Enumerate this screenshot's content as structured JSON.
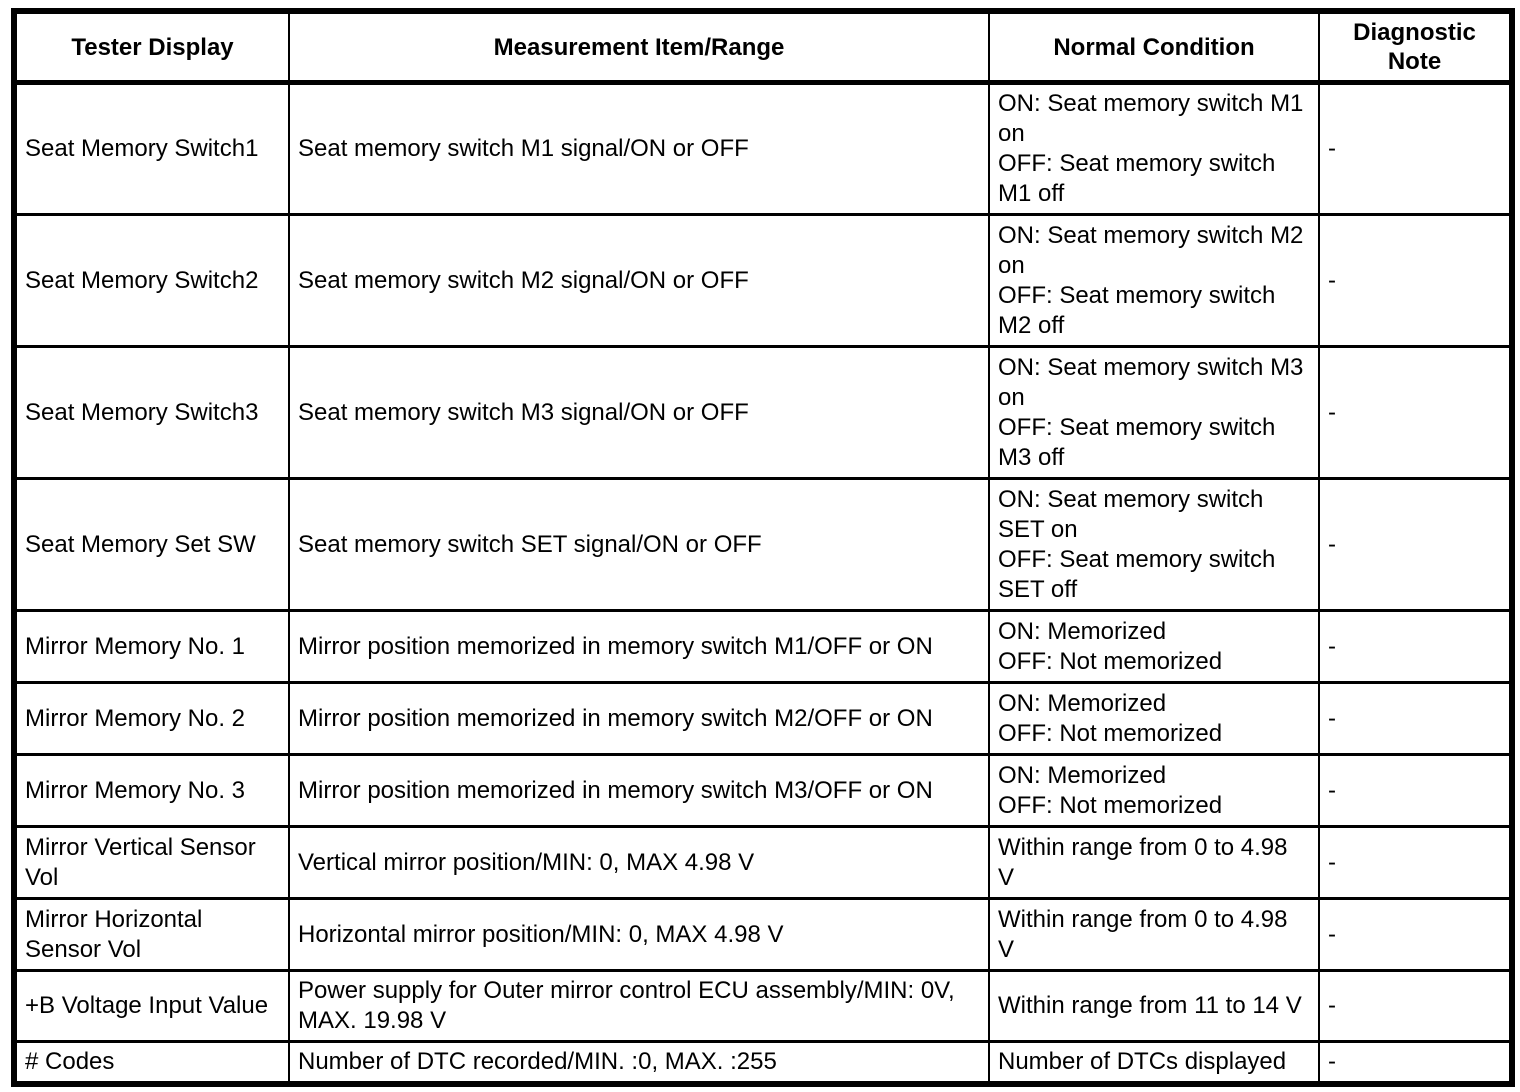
{
  "table": {
    "columns": [
      {
        "label": "Tester Display"
      },
      {
        "label": "Measurement Item/Range"
      },
      {
        "label": "Normal Condition"
      },
      {
        "label": "Diagnostic Note"
      }
    ],
    "rows": [
      {
        "tester_display": "Seat Memory Switch1",
        "measurement": "Seat memory switch M1 signal/ON or OFF",
        "normal_condition": "ON: Seat memory switch M1 on\nOFF: Seat memory switch M1 off",
        "diagnostic_note": "-"
      },
      {
        "tester_display": "Seat Memory Switch2",
        "measurement": "Seat memory switch M2 signal/ON or OFF",
        "normal_condition": "ON: Seat memory switch M2 on\nOFF: Seat memory switch M2 off",
        "diagnostic_note": "-"
      },
      {
        "tester_display": "Seat Memory Switch3",
        "measurement": "Seat memory switch M3 signal/ON or OFF",
        "normal_condition": "ON: Seat memory switch M3 on\nOFF: Seat memory switch M3 off",
        "diagnostic_note": "-"
      },
      {
        "tester_display": "Seat Memory Set SW",
        "measurement": "Seat memory switch SET signal/ON or OFF",
        "normal_condition": "ON: Seat memory switch SET on\nOFF: Seat memory switch SET off",
        "diagnostic_note": "-"
      },
      {
        "tester_display": "Mirror Memory No. 1",
        "measurement": "Mirror position memorized in memory switch M1/OFF or ON",
        "normal_condition": "ON: Memorized\nOFF: Not memorized",
        "diagnostic_note": "-"
      },
      {
        "tester_display": "Mirror Memory No. 2",
        "measurement": "Mirror position memorized in memory switch M2/OFF or ON",
        "normal_condition": "ON: Memorized\nOFF: Not memorized",
        "diagnostic_note": "-"
      },
      {
        "tester_display": "Mirror Memory No. 3",
        "measurement": "Mirror position memorized in memory switch M3/OFF or ON",
        "normal_condition": "ON: Memorized\nOFF: Not memorized",
        "diagnostic_note": "-"
      },
      {
        "tester_display": "Mirror Vertical Sensor Vol",
        "measurement": "Vertical mirror position/MIN: 0, MAX 4.98 V",
        "normal_condition": "Within range from 0 to 4.98 V",
        "diagnostic_note": "-"
      },
      {
        "tester_display": "Mirror Horizontal Sensor Vol",
        "measurement": "Horizontal mirror position/MIN: 0, MAX 4.98 V",
        "normal_condition": "Within range from 0 to 4.98 V",
        "diagnostic_note": "-"
      },
      {
        "tester_display": "+B Voltage Input Value",
        "measurement": "Power supply for Outer mirror control ECU assembly/MIN: 0V, MAX. 19.98 V",
        "normal_condition": "Within range from 11 to 14 V",
        "diagnostic_note": "-"
      },
      {
        "tester_display": "# Codes",
        "measurement": "Number of DTC recorded/MIN. :0, MAX. :255",
        "normal_condition": "Number of DTCs displayed",
        "diagnostic_note": "-"
      }
    ]
  }
}
